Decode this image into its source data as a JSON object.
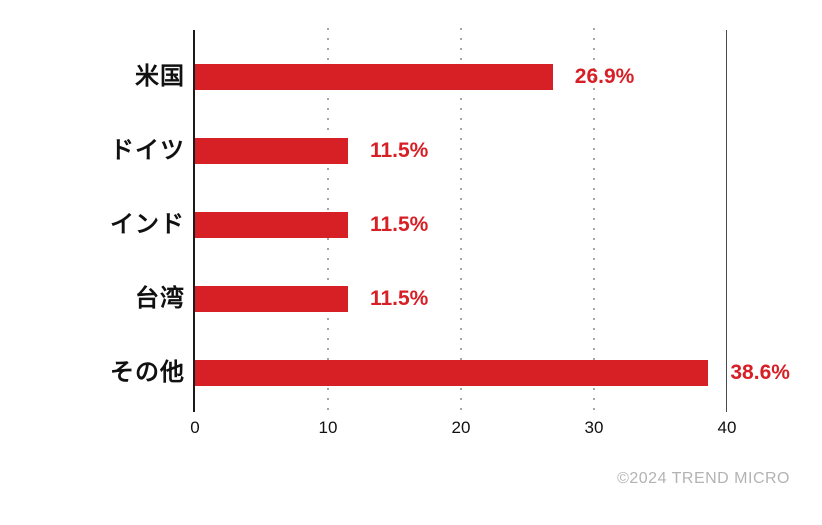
{
  "chart_data": {
    "type": "bar",
    "orientation": "horizontal",
    "title": "",
    "xlabel": "",
    "ylabel": "",
    "categories": [
      "米国",
      "ドイツ",
      "インド",
      "台湾",
      "その他"
    ],
    "values": [
      26.9,
      11.5,
      11.5,
      11.5,
      38.6
    ],
    "value_labels": [
      "26.9%",
      "11.5%",
      "11.5%",
      "11.5%",
      "38.6%"
    ],
    "xlim": [
      0,
      40
    ],
    "x_ticks": [
      0,
      10,
      20,
      30,
      40
    ],
    "grid": "dotted vertical lines at 10, 20, 30; solid vertical line at 40",
    "legend": "none"
  },
  "colors": {
    "bar": "#d71f26",
    "value_label": "#d71f26",
    "axis_line": "#1a1a1a",
    "grid_dot": "#a6a6a6",
    "grid_solid": "#4a4a4a",
    "category_label": "#111111",
    "tick_label": "#111111",
    "footer_text": "#b3b3b3",
    "background": "#ffffff"
  },
  "footer": {
    "copyright": "©2024 TREND MICRO"
  }
}
